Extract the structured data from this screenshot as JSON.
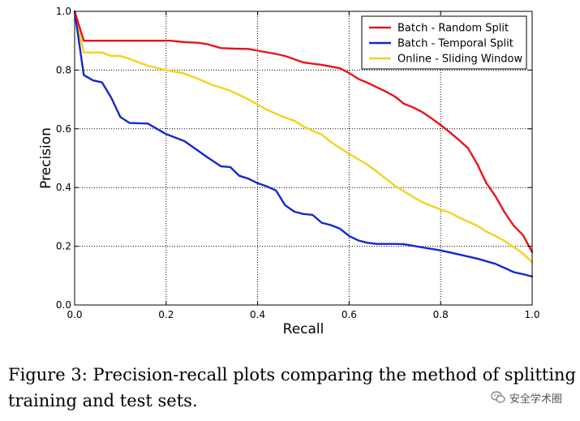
{
  "chart_data": {
    "type": "line",
    "title": "",
    "xlabel": "Recall",
    "ylabel": "Precision",
    "xlim": [
      0.0,
      1.0
    ],
    "ylim": [
      0.0,
      1.0
    ],
    "xticks": [
      "0.0",
      "0.2",
      "0.4",
      "0.6",
      "0.8",
      "1.0"
    ],
    "yticks": [
      "0.0",
      "0.2",
      "0.4",
      "0.6",
      "0.8",
      "1.0"
    ],
    "grid": "dotted",
    "legend_position": "top-right",
    "series": [
      {
        "name": "Batch - Random Split",
        "color": "#e8141b",
        "x": [
          0.0,
          0.02,
          0.06,
          0.1,
          0.14,
          0.18,
          0.21,
          0.24,
          0.27,
          0.29,
          0.32,
          0.35,
          0.38,
          0.4,
          0.44,
          0.46,
          0.5,
          0.54,
          0.58,
          0.6,
          0.62,
          0.64,
          0.66,
          0.68,
          0.7,
          0.72,
          0.74,
          0.76,
          0.78,
          0.8,
          0.82,
          0.84,
          0.86,
          0.88,
          0.9,
          0.92,
          0.94,
          0.96,
          0.98,
          1.0
        ],
        "y": [
          1.0,
          0.9,
          0.9,
          0.9,
          0.9,
          0.9,
          0.9,
          0.895,
          0.893,
          0.888,
          0.875,
          0.873,
          0.872,
          0.866,
          0.855,
          0.848,
          0.826,
          0.818,
          0.806,
          0.79,
          0.77,
          0.757,
          0.742,
          0.727,
          0.71,
          0.685,
          0.673,
          0.657,
          0.636,
          0.613,
          0.588,
          0.562,
          0.534,
          0.48,
          0.415,
          0.37,
          0.315,
          0.27,
          0.238,
          0.18
        ]
      },
      {
        "name": "Batch - Temporal Split",
        "color": "#1428d0",
        "x": [
          0.0,
          0.02,
          0.04,
          0.06,
          0.08,
          0.1,
          0.12,
          0.16,
          0.2,
          0.24,
          0.27,
          0.29,
          0.32,
          0.34,
          0.36,
          0.38,
          0.4,
          0.42,
          0.44,
          0.46,
          0.48,
          0.5,
          0.52,
          0.54,
          0.56,
          0.58,
          0.6,
          0.62,
          0.64,
          0.66,
          0.68,
          0.7,
          0.72,
          0.76,
          0.8,
          0.84,
          0.88,
          0.92,
          0.94,
          0.96,
          0.98,
          1.0
        ],
        "y": [
          1.0,
          0.783,
          0.765,
          0.758,
          0.706,
          0.64,
          0.62,
          0.618,
          0.582,
          0.558,
          0.525,
          0.503,
          0.472,
          0.47,
          0.44,
          0.43,
          0.415,
          0.404,
          0.39,
          0.34,
          0.318,
          0.31,
          0.307,
          0.28,
          0.272,
          0.26,
          0.235,
          0.22,
          0.212,
          0.208,
          0.208,
          0.208,
          0.207,
          0.196,
          0.186,
          0.172,
          0.158,
          0.14,
          0.126,
          0.112,
          0.105,
          0.097
        ]
      },
      {
        "name": "Online - Sliding Window",
        "color": "#f3d31a",
        "x": [
          0.0,
          0.02,
          0.04,
          0.06,
          0.08,
          0.1,
          0.12,
          0.16,
          0.2,
          0.24,
          0.27,
          0.3,
          0.34,
          0.38,
          0.42,
          0.46,
          0.48,
          0.5,
          0.52,
          0.54,
          0.56,
          0.6,
          0.64,
          0.66,
          0.7,
          0.74,
          0.76,
          0.8,
          0.82,
          0.84,
          0.88,
          0.9,
          0.92,
          0.94,
          0.96,
          0.98,
          1.0
        ],
        "y": [
          1.0,
          0.86,
          0.86,
          0.86,
          0.848,
          0.848,
          0.838,
          0.815,
          0.8,
          0.788,
          0.77,
          0.75,
          0.73,
          0.7,
          0.665,
          0.638,
          0.628,
          0.608,
          0.593,
          0.58,
          0.555,
          0.515,
          0.478,
          0.455,
          0.406,
          0.368,
          0.35,
          0.325,
          0.315,
          0.298,
          0.27,
          0.25,
          0.235,
          0.218,
          0.197,
          0.175,
          0.145
        ]
      }
    ]
  },
  "caption": "Figure 3:  Precision-recall plots comparing the method of splitting training and test sets.",
  "watermark": {
    "text": "安全学术圈",
    "icon": "wechat-icon"
  }
}
